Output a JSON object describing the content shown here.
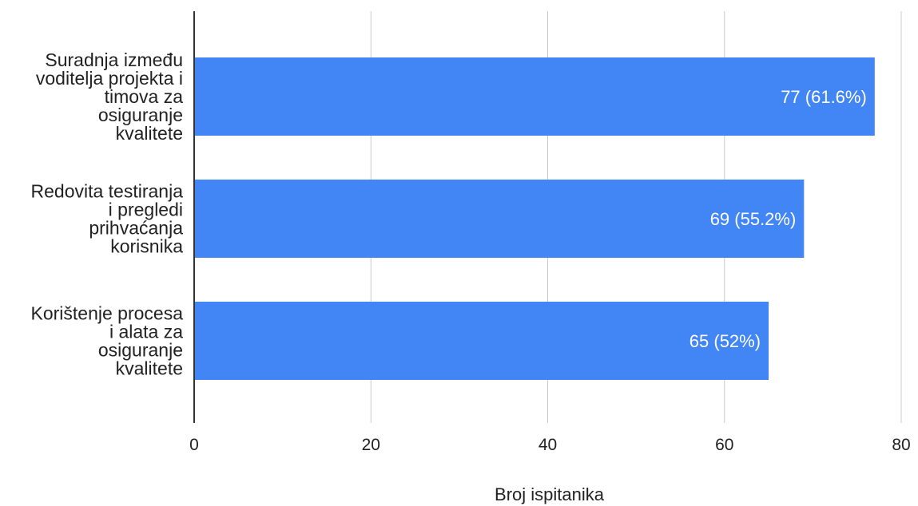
{
  "chart_data": {
    "type": "bar",
    "orientation": "horizontal",
    "categories": [
      [
        "Suradnja između",
        "voditelja projekta i",
        "timova za",
        "osiguranje",
        "kvalitete"
      ],
      [
        "Redovita testiranja",
        "i pregledi",
        "prihvaćanja",
        "korisnika"
      ],
      [
        "Korištenje procesa",
        "i alata za",
        "osiguranje",
        "kvalitete"
      ]
    ],
    "values": [
      77,
      69,
      65
    ],
    "data_labels": [
      "77 (61.6%)",
      "69 (55.2%)",
      "65 (52%)"
    ],
    "xlabel": "Broj ispitanika",
    "ylabel": "",
    "xlim": [
      0,
      80
    ],
    "x_ticks": [
      0,
      20,
      40,
      60,
      80
    ],
    "grid": "vertical",
    "legend": "none",
    "bar_color": "#4285f4",
    "grid_color": "#cccccc",
    "axis_color": "#333333"
  }
}
